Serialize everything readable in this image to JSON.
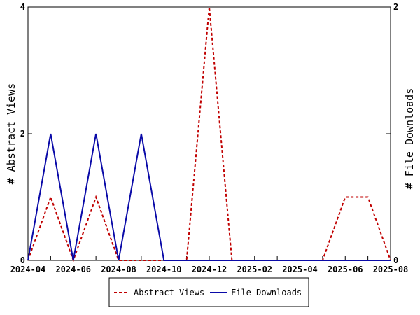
{
  "chart_data": {
    "type": "line",
    "x_tick_labels": [
      "2024-04",
      "2024-06",
      "2024-08",
      "2024-10",
      "2024-12",
      "2025-02",
      "2025-04",
      "2025-06",
      "2025-08"
    ],
    "x": [
      "2024-04",
      "2024-05",
      "2024-06",
      "2024-07",
      "2024-08",
      "2024-09",
      "2024-10",
      "2024-11",
      "2024-12",
      "2025-01",
      "2025-02",
      "2025-03",
      "2025-04",
      "2025-05",
      "2025-06",
      "2025-07",
      "2025-08"
    ],
    "y_left": {
      "label": "# Abstract Views",
      "ylim": [
        0,
        4
      ],
      "ticks": [
        "0",
        "2",
        "4"
      ]
    },
    "y_right": {
      "label": "# File Downloads",
      "ylim": [
        0,
        2
      ],
      "ticks": [
        "0",
        "1",
        "2"
      ]
    },
    "series": [
      {
        "name": "Abstract Views",
        "axis": "left",
        "color": "#c00000",
        "style": "dashed",
        "values": [
          0,
          1,
          0,
          1,
          0,
          0,
          0,
          0,
          4,
          0,
          0,
          0,
          0,
          0,
          1,
          1,
          0
        ]
      },
      {
        "name": "File Downloads",
        "axis": "right",
        "color": "#0a0aa8",
        "style": "solid",
        "values": [
          0,
          1,
          0,
          1,
          0,
          1,
          0,
          0,
          0,
          0,
          0,
          0,
          0,
          0,
          0,
          0,
          0
        ]
      }
    ],
    "legend_position": "bottom",
    "grid": false
  }
}
